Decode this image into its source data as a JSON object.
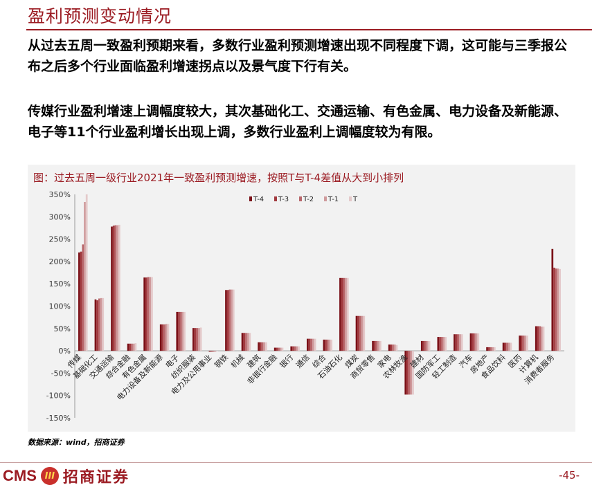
{
  "page": {
    "title": "盈利预测变动情况",
    "paragraph1": "从过去五周一致盈利预期来看，多数行业盈利预测增速出现不同程度下调，这可能与三季报公布之后多个行业面临盈利增速拐点以及景气度下行有关。",
    "paragraph2": "传媒行业盈利增速上调幅度较大，其次基础化工、交通运输、有色金属、电力设备及新能源、电子等11个行业盈利增长出现上调，多数行业盈利上调幅度较为有限。",
    "chart_title": "图：过去五周一级行业2021年一致盈利预测增速，按照T与T-4差值从大到小排列",
    "source": "数据来源：wind，招商证券",
    "page_number": "-45-"
  },
  "logo": {
    "brand": "CMS",
    "badge": "III",
    "name": "招商证券"
  },
  "colors": {
    "accent": "#9b1b22",
    "series": [
      "#7b1118",
      "#a23a3f",
      "#b8676b",
      "#cf9a9c",
      "#e4c9ca"
    ]
  },
  "chart_data": {
    "type": "bar",
    "title": "图：过去五周一级行业2021年一致盈利预测增速，按照T与T-4差值从大到小排列",
    "categories": [
      "传媒",
      "基础化工",
      "交通运输",
      "综合金融",
      "有色金属",
      "电力设备及新能源",
      "电子",
      "纺织服装",
      "电力及公用事业",
      "钢铁",
      "机械",
      "建筑",
      "非银行金融",
      "银行",
      "通信",
      "综合",
      "石油石化",
      "煤炭",
      "商贸零售",
      "家电",
      "农林牧渔",
      "建材",
      "国防军工",
      "轻工制造",
      "汽车",
      "房地产",
      "食品饮料",
      "医药",
      "计算机",
      "消费者服务"
    ],
    "series": [
      {
        "name": "T-4",
        "values": [
          220,
          115,
          278,
          16,
          164,
          59,
          87,
          51,
          -2,
          136,
          40,
          19,
          7,
          10,
          27,
          25,
          163,
          78,
          22,
          14,
          -98,
          22,
          31,
          37,
          39,
          8,
          18,
          34,
          55,
          228
        ]
      },
      {
        "name": "T-3",
        "values": [
          222,
          113,
          280,
          16,
          164,
          59,
          87,
          51,
          -2,
          136,
          40,
          19,
          7,
          10,
          27,
          25,
          163,
          78,
          22,
          14,
          -98,
          22,
          31,
          37,
          39,
          8,
          18,
          34,
          55,
          186
        ]
      },
      {
        "name": "T-2",
        "values": [
          238,
          117,
          281,
          16,
          165,
          59,
          87,
          51,
          -2,
          137,
          40,
          19,
          7,
          10,
          27,
          25,
          163,
          78,
          22,
          14,
          -98,
          22,
          31,
          37,
          39,
          8,
          18,
          34,
          55,
          184
        ]
      },
      {
        "name": "T-1",
        "values": [
          333,
          118,
          281,
          16,
          165,
          60,
          87,
          51,
          -2,
          137,
          40,
          19,
          7,
          10,
          27,
          25,
          163,
          78,
          22,
          14,
          -98,
          22,
          31,
          37,
          39,
          8,
          18,
          34,
          54,
          184
        ]
      },
      {
        "name": "T",
        "values": [
          350,
          118,
          282,
          17,
          165,
          60,
          87,
          52,
          -1,
          137,
          40,
          19,
          7,
          10,
          27,
          25,
          163,
          78,
          22,
          13,
          -98,
          22,
          31,
          37,
          39,
          8,
          18,
          34,
          54,
          183
        ]
      }
    ],
    "y_tick_labels": [
      "350%",
      "300%",
      "250%",
      "200%",
      "150%",
      "100%",
      "50%",
      "0%",
      "-50%",
      "-100%",
      "-150%"
    ],
    "ylim": [
      -150,
      350
    ],
    "legend_position": "top",
    "grid": false
  }
}
